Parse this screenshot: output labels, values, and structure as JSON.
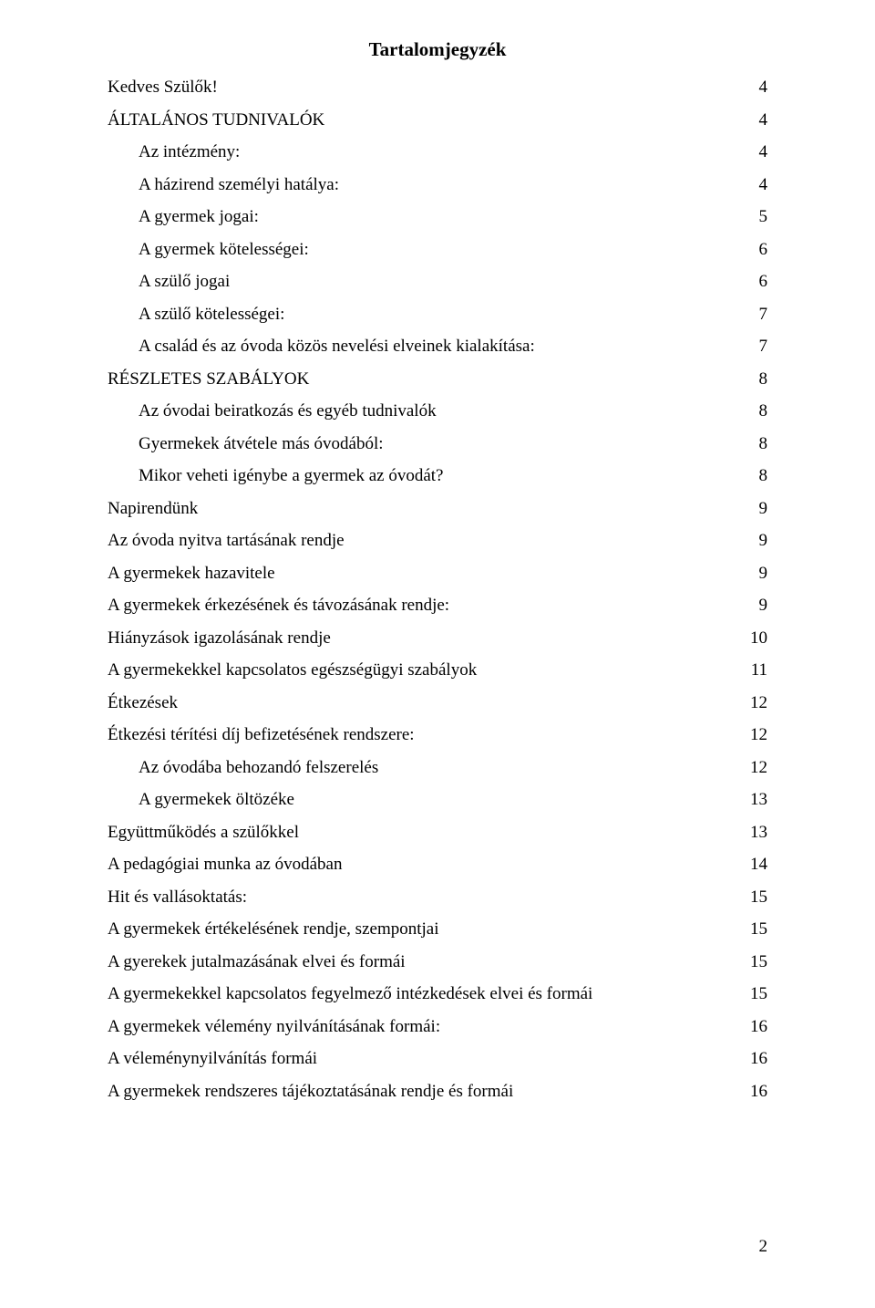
{
  "title": "Tartalomjegyzék",
  "pageNumber": "2",
  "entries": [
    {
      "label": "Kedves Szülők!",
      "page": "4",
      "indent": 0
    },
    {
      "label": "ÁLTALÁNOS TUDNIVALÓK",
      "page": "4",
      "indent": 0
    },
    {
      "label": "Az intézmény:",
      "page": "4",
      "indent": 1
    },
    {
      "label": "A házirend személyi hatálya:",
      "page": "4",
      "indent": 1
    },
    {
      "label": "A gyermek jogai:",
      "page": "5",
      "indent": 1
    },
    {
      "label": "A gyermek kötelességei:",
      "page": "6",
      "indent": 1
    },
    {
      "label": "A szülő jogai",
      "page": "6",
      "indent": 1
    },
    {
      "label": "A szülő kötelességei:",
      "page": "7",
      "indent": 1
    },
    {
      "label": "A család és az óvoda közös nevelési elveinek kialakítása:",
      "page": "7",
      "indent": 1
    },
    {
      "label": "RÉSZLETES SZABÁLYOK",
      "page": "8",
      "indent": 0
    },
    {
      "label": "Az óvodai beiratkozás és egyéb tudnivalók",
      "page": "8",
      "indent": 1
    },
    {
      "label": "Gyermekek átvétele más óvodából:",
      "page": "8",
      "indent": 1
    },
    {
      "label": "Mikor veheti igénybe a gyermek az óvodát?",
      "page": "8",
      "indent": 1
    },
    {
      "label": "Napirendünk",
      "page": "9",
      "indent": 0
    },
    {
      "label": "Az óvoda nyitva tartásának rendje",
      "page": "9",
      "indent": 0
    },
    {
      "label": "A gyermekek hazavitele",
      "page": "9",
      "indent": 0
    },
    {
      "label": "A gyermekek érkezésének és távozásának rendje:",
      "page": "9",
      "indent": 0
    },
    {
      "label": "Hiányzások igazolásának rendje",
      "page": "10",
      "indent": 0
    },
    {
      "label": "A gyermekekkel kapcsolatos egészségügyi szabályok",
      "page": "11",
      "indent": 0
    },
    {
      "label": "Étkezések",
      "page": "12",
      "indent": 0
    },
    {
      "label": "Étkezési térítési díj befizetésének rendszere:",
      "page": "12",
      "indent": 0
    },
    {
      "label": "Az óvodába behozandó felszerelés",
      "page": "12",
      "indent": 1
    },
    {
      "label": "A gyermekek öltözéke",
      "page": "13",
      "indent": 1
    },
    {
      "label": "Együttműködés a szülőkkel",
      "page": "13",
      "indent": 0
    },
    {
      "label": "A pedagógiai munka az óvodában",
      "page": "14",
      "indent": 0
    },
    {
      "label": "Hit és vallásoktatás:",
      "page": "15",
      "indent": 0
    },
    {
      "label": "A gyermekek értékelésének rendje, szempontjai",
      "page": "15",
      "indent": 0
    },
    {
      "label": "A gyerekek jutalmazásának elvei és formái",
      "page": "15",
      "indent": 0
    },
    {
      "label": "A gyermekekkel kapcsolatos fegyelmező intézkedések elvei és formái",
      "page": "15",
      "indent": 0
    },
    {
      "label": "A gyermekek vélemény nyilvánításának formái:",
      "page": "16",
      "indent": 0
    },
    {
      "label": "A véleménynyilvánítás formái",
      "page": "16",
      "indent": 0
    },
    {
      "label": "A gyermekek rendszeres tájékoztatásának rendje és formái",
      "page": "16",
      "indent": 0
    }
  ]
}
